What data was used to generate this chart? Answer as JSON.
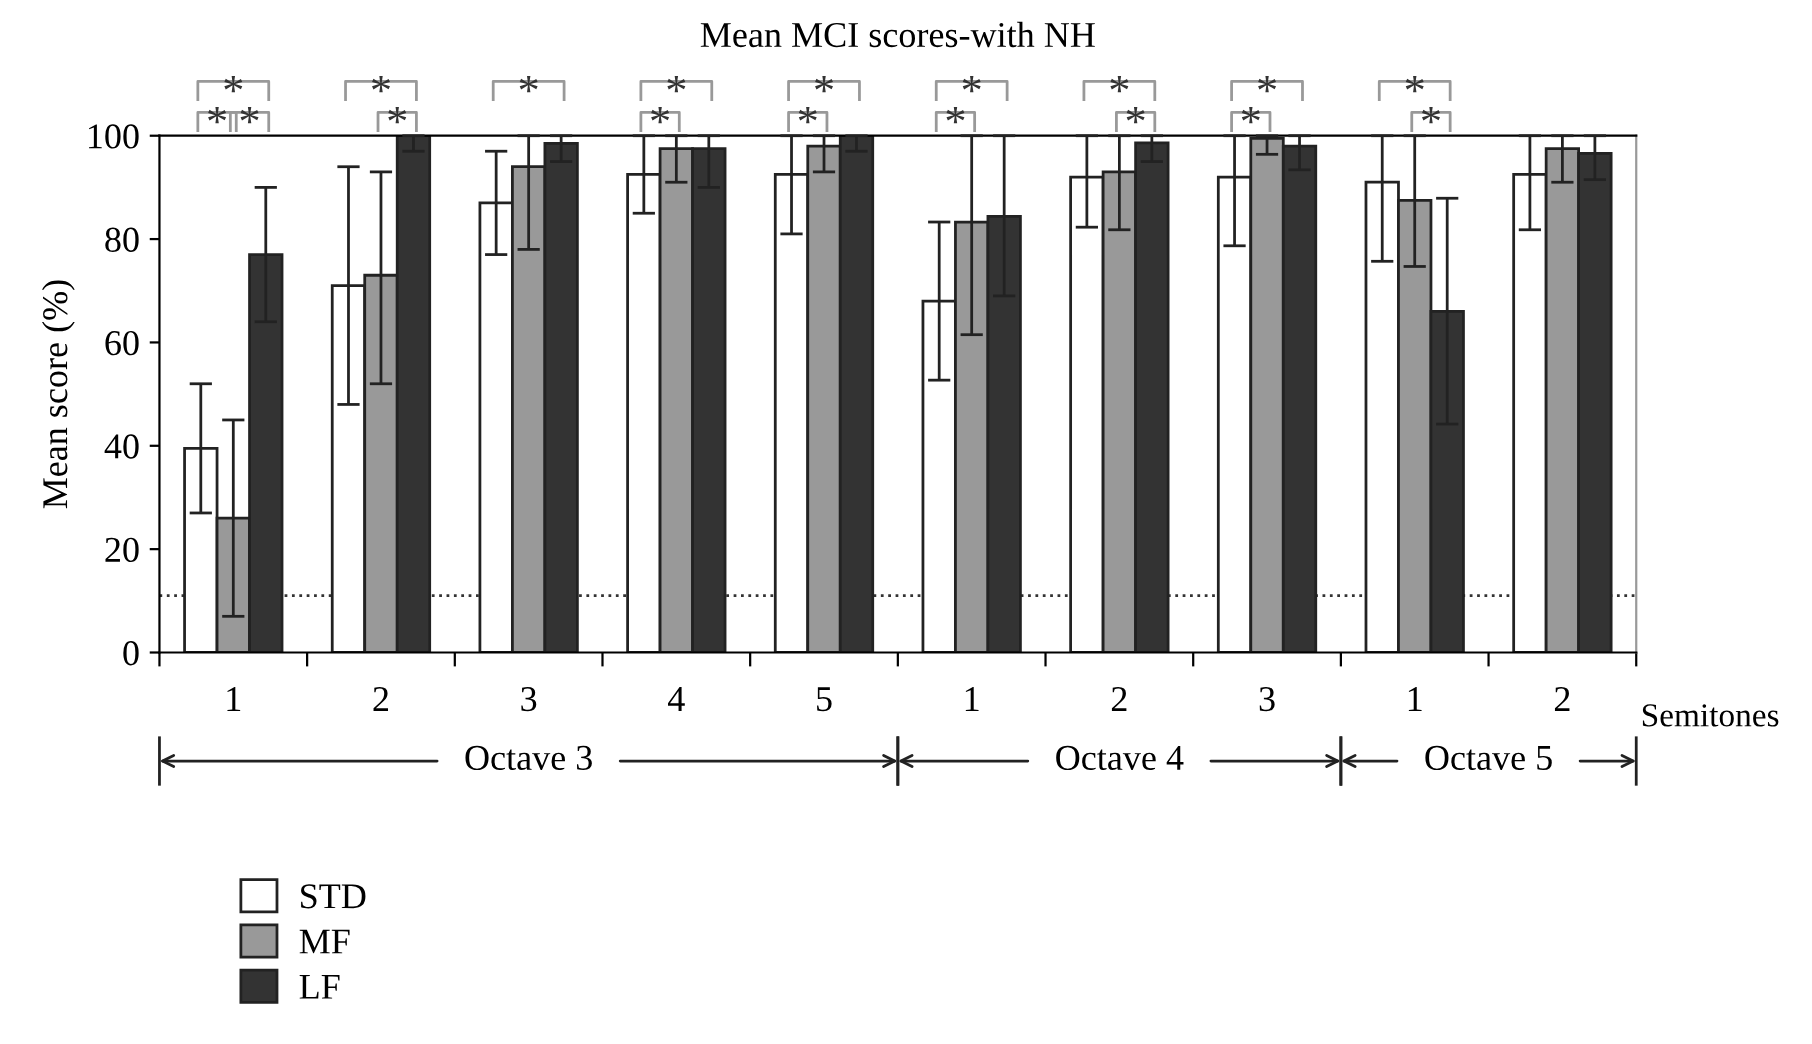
{
  "chart_data": {
    "type": "bar",
    "title": "Mean MCI scores-with NH",
    "xlabel": "Semitones",
    "ylabel": "Mean score (%)",
    "categories": [
      "1",
      "2",
      "3",
      "4",
      "5",
      "1",
      "2",
      "3",
      "1",
      "2"
    ],
    "series": [
      {
        "name": "STD",
        "color": "#ffffff",
        "values": [
          39.5,
          71,
          87,
          92.5,
          92.5,
          68,
          92,
          92,
          91,
          92.5
        ],
        "errors": [
          [
            27,
            52
          ],
          [
            48,
            94
          ],
          [
            77,
            97
          ],
          [
            85,
            100
          ],
          [
            81,
            100
          ],
          [
            52.7,
            83.3
          ],
          [
            82.3,
            100
          ],
          [
            78.7,
            100
          ],
          [
            75.7,
            100
          ],
          [
            81.8,
            100
          ]
        ]
      },
      {
        "name": "MF",
        "color": "#999999",
        "values": [
          26,
          73,
          94,
          97.5,
          98,
          83.3,
          93,
          99.5,
          87.5,
          97.5
        ],
        "errors": [
          [
            7,
            45
          ],
          [
            52,
            93
          ],
          [
            78,
            100
          ],
          [
            91,
            100
          ],
          [
            93,
            100
          ],
          [
            61.5,
            100
          ],
          [
            81.8,
            100
          ],
          [
            96.4,
            100
          ],
          [
            74.7,
            100
          ],
          [
            91,
            100
          ]
        ]
      },
      {
        "name": "LF",
        "color": "#333333",
        "values": [
          77,
          100,
          98.5,
          97.5,
          100,
          84.4,
          98.6,
          98,
          66,
          96.6
        ],
        "errors": [
          [
            64,
            90
          ],
          [
            97,
            100
          ],
          [
            95,
            100
          ],
          [
            90,
            100
          ],
          [
            97,
            100
          ],
          [
            69,
            100
          ],
          [
            95,
            100
          ],
          [
            93.4,
            100
          ],
          [
            44.2,
            87.9
          ],
          [
            91.5,
            100
          ]
        ]
      }
    ],
    "ylim": [
      0,
      100
    ],
    "yticks": [
      0,
      20,
      40,
      60,
      80,
      100
    ],
    "grid": false,
    "legend": "bottom left",
    "ref_lines": [
      {
        "axis": "y",
        "value": 11,
        "line_style": "dotted",
        "color": "#333333"
      }
    ],
    "annotations": [
      "*",
      "*",
      "*",
      "*",
      "*",
      "*",
      "*",
      "*",
      "*",
      "*",
      "*",
      "*",
      "*",
      "*",
      "*",
      "*",
      "*",
      "*",
      "Octave 3",
      "Octave 4",
      "Octave 5"
    ]
  }
}
